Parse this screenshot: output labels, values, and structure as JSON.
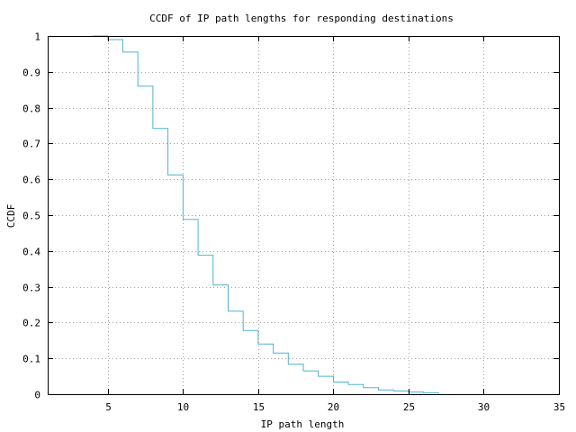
{
  "chart_data": {
    "type": "line",
    "title": "CCDF of IP path lengths for responding destinations",
    "xlabel": "IP path length",
    "ylabel": "CCDF",
    "xlim": [
      1,
      35
    ],
    "ylim": [
      0,
      1
    ],
    "xticks": [
      5,
      10,
      15,
      20,
      25,
      30,
      35
    ],
    "xtick_labels": [
      "5",
      "10",
      "15",
      "20",
      "25",
      "30",
      "35"
    ],
    "yticks": [
      0,
      0.1,
      0.2,
      0.3,
      0.4,
      0.5,
      0.6,
      0.7,
      0.8,
      0.9,
      1
    ],
    "ytick_labels": [
      "0",
      "0.1",
      "0.2",
      "0.3",
      "0.4",
      "0.5",
      "0.6",
      "0.7",
      "0.8",
      "0.9",
      "1"
    ],
    "grid": true,
    "step": "post",
    "series": [
      {
        "color": "#4eb3d3",
        "x": [
          4,
          5,
          6,
          7,
          8,
          9,
          10,
          11,
          12,
          13,
          14,
          15,
          16,
          17,
          18,
          19,
          20,
          21,
          22,
          23,
          24,
          25,
          26,
          27
        ],
        "y": [
          1.0,
          0.99,
          0.955,
          0.86,
          0.742,
          0.612,
          0.488,
          0.388,
          0.305,
          0.232,
          0.178,
          0.14,
          0.115,
          0.084,
          0.065,
          0.05,
          0.034,
          0.027,
          0.018,
          0.012,
          0.009,
          0.006,
          0.004,
          0.002
        ]
      }
    ]
  }
}
